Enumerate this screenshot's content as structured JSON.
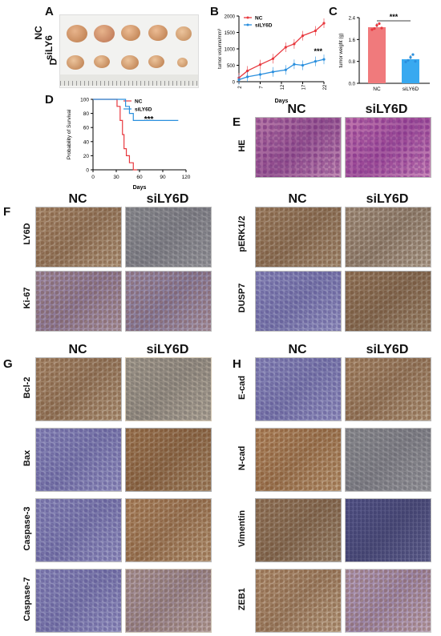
{
  "panels": {
    "A": {
      "label": "A",
      "row1": "NC",
      "row2_line1": "siLY6",
      "row2_line2": "D"
    },
    "B": {
      "label": "B"
    },
    "C": {
      "label": "C"
    },
    "D": {
      "label": "D"
    },
    "E": {
      "label": "E",
      "col1": "NC",
      "col2": "siLY6D",
      "rows": [
        "HE"
      ]
    },
    "F": {
      "label": "F",
      "col1": "NC",
      "col2": "siLY6D",
      "rows": [
        "LY6D",
        "Ki-67"
      ],
      "right_col1": "NC",
      "right_col2": "siLY6D",
      "right_rows": [
        "pERK1/2",
        "DUSP7"
      ]
    },
    "G": {
      "label": "G",
      "col1": "NC",
      "col2": "siLY6D",
      "rows": [
        "Bcl-2",
        "Bax",
        "Caspase-3",
        "Caspase-7"
      ]
    },
    "H": {
      "label": "H",
      "col1": "NC",
      "col2": "siLY6D",
      "rows": [
        "E-cad",
        "N-cad",
        "Vimentin",
        "ZEB1"
      ]
    }
  },
  "colors": {
    "nc": "#e8393f",
    "si": "#2a8fde",
    "nc_bar": "#f07a7c",
    "si_bar": "#38a9f0"
  },
  "chart_data": [
    {
      "id": "B",
      "type": "line",
      "xlabel": "Days",
      "ylabel": "tumor volumn/mm³",
      "x": [
        2,
        4,
        7,
        10,
        13,
        15,
        17,
        20,
        22
      ],
      "xticks": [
        "2",
        "7",
        "12",
        "17",
        "22"
      ],
      "yticks": [
        "0",
        "500",
        "1000",
        "1500",
        "2000"
      ],
      "ylim": [
        0,
        2000
      ],
      "series": [
        {
          "name": "NC",
          "values": [
            120,
            330,
            520,
            700,
            1050,
            1150,
            1400,
            1550,
            1780
          ]
        },
        {
          "name": "siLY6D",
          "values": [
            60,
            150,
            220,
            300,
            360,
            530,
            500,
            620,
            680
          ]
        }
      ],
      "annotation": "***",
      "legend": "top-left"
    },
    {
      "id": "C",
      "type": "bar",
      "ylabel": "tumor weight (g)",
      "categories": [
        "NC",
        "siLY6D"
      ],
      "values": [
        2.05,
        0.88
      ],
      "yticks": [
        "0.0",
        "0.8",
        "1.6",
        "2.4"
      ],
      "ylim": [
        0,
        2.4
      ],
      "points": [
        [
          1.96,
          2.0,
          2.12,
          2.18,
          2.02
        ],
        [
          0.78,
          0.84,
          0.95,
          1.05,
          0.8
        ]
      ],
      "annotation": "***"
    },
    {
      "id": "D",
      "type": "line",
      "xlabel": "Days",
      "ylabel": "Probability of Survival",
      "xticks": [
        "0",
        "30",
        "60",
        "90",
        "120"
      ],
      "yticks": [
        "0",
        "20",
        "40",
        "60",
        "80",
        "100"
      ],
      "xlim": [
        0,
        120
      ],
      "ylim": [
        0,
        100
      ],
      "series": [
        {
          "name": "NC",
          "steps": [
            [
              0,
              100
            ],
            [
              31,
              100
            ],
            [
              31,
              90
            ],
            [
              35,
              90
            ],
            [
              35,
              70
            ],
            [
              38,
              70
            ],
            [
              38,
              50
            ],
            [
              40,
              50
            ],
            [
              40,
              30
            ],
            [
              43,
              30
            ],
            [
              43,
              20
            ],
            [
              47,
              20
            ],
            [
              47,
              10
            ],
            [
              52,
              10
            ],
            [
              52,
              0
            ],
            [
              57,
              0
            ]
          ]
        },
        {
          "name": "siLY6D",
          "steps": [
            [
              0,
              100
            ],
            [
              42,
              100
            ],
            [
              42,
              90
            ],
            [
              47,
              90
            ],
            [
              47,
              80
            ],
            [
              52,
              80
            ],
            [
              52,
              70
            ],
            [
              110,
              70
            ]
          ]
        }
      ],
      "annotation": "***",
      "legend": "top-right"
    }
  ]
}
